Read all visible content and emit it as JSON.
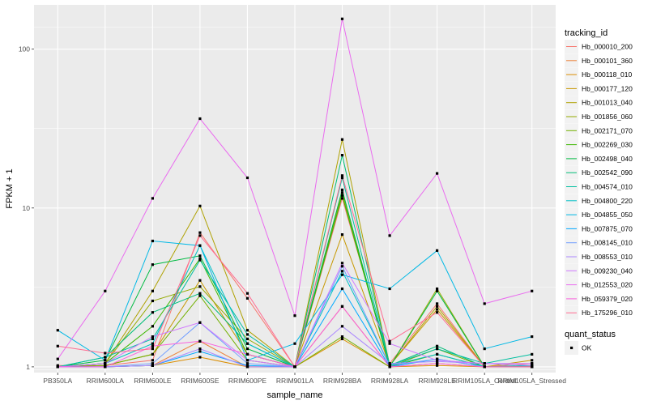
{
  "chart_data": {
    "type": "line",
    "title": "",
    "xlabel": "sample_name",
    "ylabel": "FPKM + 1",
    "y_scale": "log10",
    "ylim": [
      0.92,
      190
    ],
    "y_ticks": [
      1,
      10,
      100
    ],
    "y_tick_labels": [
      "1",
      "10",
      "100"
    ],
    "grid": true,
    "legend_position": "right",
    "categories": [
      "PB350LA",
      "RRIM600LA",
      "RRIM600LE",
      "RRIM600SE",
      "RRIM600PE",
      "RRIM901LA",
      "RRIM928BA",
      "RRIM928LA",
      "RRIM928LE",
      "RRIM105LA_Control",
      "RRIM105LA_Stressed"
    ],
    "series": [
      {
        "name": "Hb_000010_200",
        "color": "#F8766D",
        "values": [
          1.02,
          1.02,
          1.1,
          7.0,
          2.7,
          1.0,
          11.5,
          1.05,
          2.5,
          1.0,
          1.05
        ]
      },
      {
        "name": "Hb_000101_360",
        "color": "#EC8239",
        "values": [
          1.0,
          1.0,
          1.02,
          1.45,
          1.0,
          1.0,
          2.4,
          1.0,
          1.05,
          1.0,
          1.0
        ]
      },
      {
        "name": "Hb_000118_010",
        "color": "#DB8E00",
        "values": [
          1.0,
          1.0,
          1.02,
          1.15,
          1.0,
          1.0,
          1.5,
          1.0,
          1.02,
          1.0,
          1.0
        ]
      },
      {
        "name": "Hb_000177_120",
        "color": "#C79800",
        "values": [
          1.0,
          1.02,
          1.2,
          3.5,
          1.2,
          1.0,
          6.8,
          1.02,
          2.3,
          1.0,
          1.1
        ]
      },
      {
        "name": "Hb_001013_040",
        "color": "#AFA100",
        "values": [
          1.0,
          1.05,
          3.0,
          10.3,
          1.7,
          1.0,
          27.0,
          1.02,
          2.4,
          1.0,
          1.02
        ]
      },
      {
        "name": "Hb_001856_060",
        "color": "#94AA00",
        "values": [
          1.0,
          1.05,
          2.6,
          3.2,
          1.5,
          1.0,
          12.5,
          1.0,
          3.1,
          1.0,
          1.0
        ]
      },
      {
        "name": "Hb_002171_070",
        "color": "#72B000",
        "values": [
          1.0,
          1.02,
          1.2,
          2.8,
          1.1,
          1.0,
          1.55,
          1.0,
          1.3,
          1.0,
          1.0
        ]
      },
      {
        "name": "Hb_002269_030",
        "color": "#3DB700",
        "values": [
          1.0,
          1.05,
          1.8,
          4.8,
          1.2,
          1.0,
          12.0,
          1.0,
          1.2,
          1.0,
          1.0
        ]
      },
      {
        "name": "Hb_002498_040",
        "color": "#00BA42",
        "values": [
          1.0,
          1.1,
          4.4,
          5.0,
          1.3,
          1.0,
          13.0,
          1.0,
          3.0,
          1.0,
          1.0
        ]
      },
      {
        "name": "Hb_002542_090",
        "color": "#00BD77",
        "values": [
          1.0,
          1.15,
          2.2,
          2.9,
          1.4,
          1.0,
          21.5,
          1.02,
          1.35,
          1.0,
          1.0
        ]
      },
      {
        "name": "Hb_004574_010",
        "color": "#00BFA0",
        "values": [
          1.0,
          1.15,
          1.5,
          4.7,
          1.6,
          1.0,
          15.5,
          1.02,
          1.3,
          1.05,
          1.2
        ]
      },
      {
        "name": "Hb_004800_220",
        "color": "#00BFC4",
        "values": [
          1.0,
          1.05,
          1.4,
          5.8,
          1.4,
          1.0,
          4.0,
          1.02,
          1.2,
          1.0,
          1.02
        ]
      },
      {
        "name": "Hb_004855_050",
        "color": "#00B8E5",
        "values": [
          1.7,
          1.1,
          6.2,
          5.8,
          1.1,
          1.4,
          3.8,
          3.1,
          5.4,
          1.3,
          1.55
        ]
      },
      {
        "name": "Hb_007875_070",
        "color": "#00A9FF",
        "values": [
          1.0,
          1.0,
          1.02,
          1.25,
          1.02,
          1.0,
          3.1,
          1.0,
          1.12,
          1.0,
          1.0
        ]
      },
      {
        "name": "Hb_008145_010",
        "color": "#6F9DFF",
        "values": [
          1.0,
          1.0,
          1.05,
          1.9,
          1.05,
          1.0,
          4.3,
          1.02,
          1.12,
          1.0,
          1.0
        ]
      },
      {
        "name": "Hb_008553_010",
        "color": "#AC88FF",
        "values": [
          1.0,
          1.0,
          1.02,
          1.3,
          1.0,
          1.0,
          1.8,
          1.05,
          1.08,
          1.05,
          1.02
        ]
      },
      {
        "name": "Hb_009230_040",
        "color": "#D078FF",
        "values": [
          1.0,
          1.05,
          1.55,
          1.9,
          1.1,
          1.0,
          4.5,
          1.4,
          1.1,
          1.05,
          1.05
        ]
      },
      {
        "name": "Hb_012553_020",
        "color": "#EA6BEF",
        "values": [
          1.12,
          3.0,
          11.5,
          36.5,
          15.5,
          2.1,
          155.0,
          6.7,
          16.5,
          2.5,
          3.0
        ]
      },
      {
        "name": "Hb_059379_020",
        "color": "#F962DD",
        "values": [
          1.0,
          1.0,
          1.35,
          1.45,
          1.2,
          1.0,
          2.4,
          1.0,
          1.05,
          1.0,
          1.0
        ]
      },
      {
        "name": "Hb_175296_010",
        "color": "#FF6C91",
        "values": [
          1.35,
          1.22,
          1.3,
          6.7,
          2.9,
          1.0,
          16.0,
          1.45,
          2.2,
          1.0,
          1.0
        ]
      }
    ],
    "legend_title": "tracking_id",
    "shape_legend": {
      "title": "quant_status",
      "label": "OK"
    }
  }
}
